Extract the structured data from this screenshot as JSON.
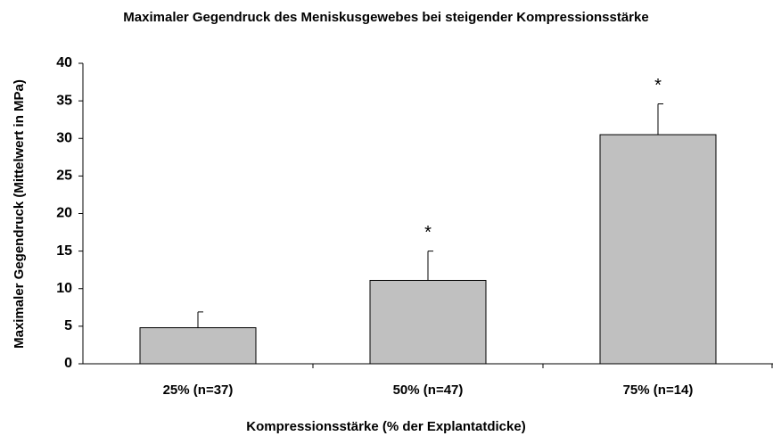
{
  "chart_data": {
    "type": "bar",
    "title": "Maximaler Gegendruck des Meniskusgewebes bei steigender Kompressionsstärke",
    "x_label": "Kompressionsstärke (% der Explantatdicke)",
    "y_label": "Maximaler Gegendruck (Mittelwert in MPa)",
    "categories": [
      "25% (n=37)",
      "50% (n=47)",
      "75% (n=14)"
    ],
    "values": [
      4.8,
      11.1,
      30.5
    ],
    "errors": [
      2.1,
      3.9,
      4.1
    ],
    "annotations": [
      null,
      "*",
      "*"
    ],
    "color": "#c0c0c0",
    "ylim": [
      0,
      40
    ],
    "yticks": [
      0,
      5,
      10,
      15,
      20,
      25,
      30,
      35,
      40
    ],
    "grid": false
  }
}
